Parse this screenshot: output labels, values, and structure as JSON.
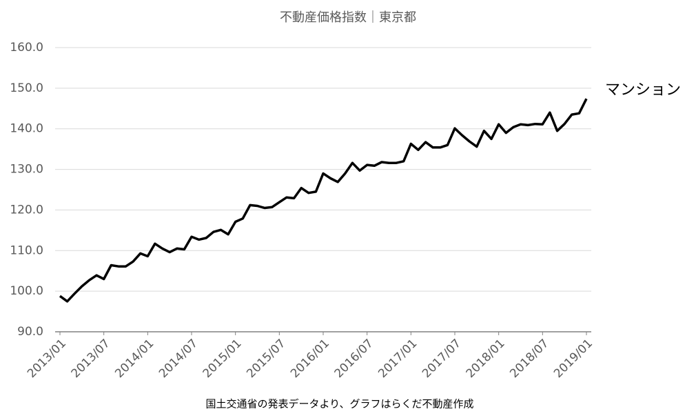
{
  "chart_data": {
    "type": "line",
    "title": "不動産価格指数｜東京都",
    "source": "国土交通省の発表データより、グラフはらくだ不動産作成",
    "categories": [
      "2013/01",
      null,
      null,
      null,
      null,
      null,
      "2013/07",
      null,
      null,
      null,
      null,
      null,
      "2014/01",
      null,
      null,
      null,
      null,
      null,
      "2014/07",
      null,
      null,
      null,
      null,
      null,
      "2015/01",
      null,
      null,
      null,
      null,
      null,
      "2015/07",
      null,
      null,
      null,
      null,
      null,
      "2016/01",
      null,
      null,
      null,
      null,
      null,
      "2016/07",
      null,
      null,
      null,
      null,
      null,
      "2017/01",
      null,
      null,
      null,
      null,
      null,
      "2017/07",
      null,
      null,
      null,
      null,
      null,
      "2018/01",
      null,
      null,
      null,
      null,
      null,
      "2018/07",
      null,
      null,
      null,
      null,
      null,
      "2019/01"
    ],
    "series": [
      {
        "name": "マンション",
        "color": "#000000",
        "values": [
          98.8,
          97.5,
          99.4,
          101.2,
          102.7,
          103.9,
          103.0,
          106.4,
          106.1,
          106.1,
          107.3,
          109.3,
          108.6,
          111.7,
          110.5,
          109.6,
          110.5,
          110.3,
          113.4,
          112.7,
          113.1,
          114.6,
          115.1,
          114.0,
          117.1,
          117.9,
          121.2,
          121.0,
          120.5,
          120.7,
          121.9,
          123.1,
          122.9,
          125.4,
          124.2,
          124.5,
          129.0,
          127.8,
          126.9,
          129.0,
          131.6,
          129.7,
          131.1,
          130.9,
          131.8,
          131.6,
          131.6,
          132.0,
          136.3,
          134.8,
          136.7,
          135.4,
          135.4,
          136.0,
          140.1,
          138.4,
          136.9,
          135.6,
          139.5,
          137.5,
          141.1,
          139.0,
          140.4,
          141.1,
          140.9,
          141.2,
          141.1,
          144.0,
          139.5,
          141.2,
          143.5,
          143.8,
          147.4
        ]
      }
    ],
    "ylim": [
      90,
      160
    ],
    "yticks": [
      {
        "value": 90,
        "label": "90.0"
      },
      {
        "value": 100,
        "label": "100.0"
      },
      {
        "value": 110,
        "label": "110.0"
      },
      {
        "value": 120,
        "label": "120.0"
      },
      {
        "value": 130,
        "label": "130.0"
      },
      {
        "value": 140,
        "label": "140.0"
      },
      {
        "value": 150,
        "label": "150.0"
      },
      {
        "value": 160,
        "label": "160.0"
      }
    ],
    "grid": true
  }
}
